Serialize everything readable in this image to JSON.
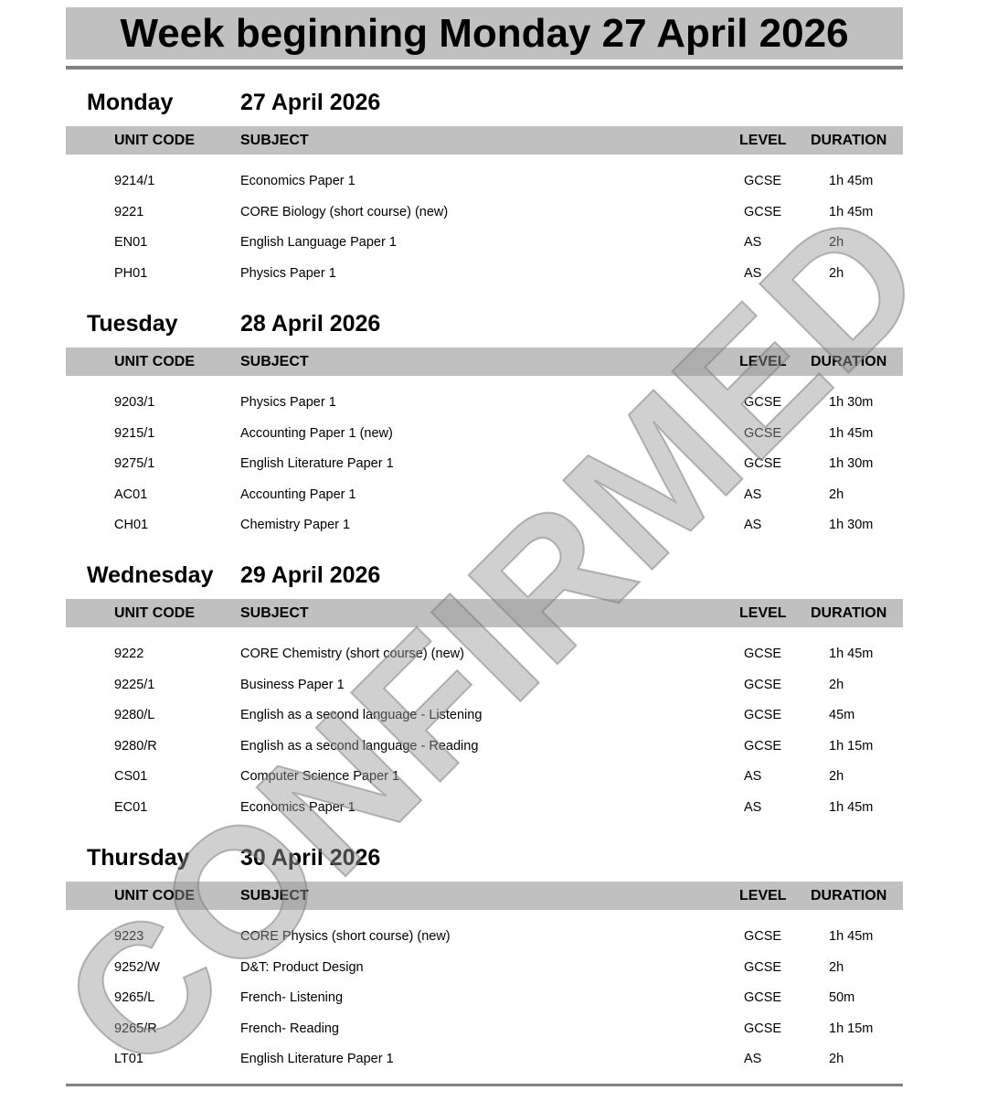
{
  "title": "Week beginning Monday 27 April 2026",
  "watermark": "CONFIRMED",
  "columns": {
    "unit_code": "UNIT CODE",
    "subject": "SUBJECT",
    "level": "LEVEL",
    "duration": "DURATION"
  },
  "days": [
    {
      "day": "Monday",
      "date": "27 April 2026",
      "rows": [
        [
          "9214/1",
          "Economics Paper 1",
          "GCSE",
          "1h 45m"
        ],
        [
          "9221",
          "CORE Biology (short course) (new)",
          "GCSE",
          "1h 45m"
        ],
        [
          "EN01",
          "English Language Paper 1",
          "AS",
          "2h"
        ],
        [
          "PH01",
          "Physics Paper 1",
          "AS",
          "2h"
        ]
      ]
    },
    {
      "day": "Tuesday",
      "date": "28 April 2026",
      "rows": [
        [
          "9203/1",
          "Physics Paper 1",
          "GCSE",
          "1h 30m"
        ],
        [
          "9215/1",
          "Accounting Paper 1 (new)",
          "GCSE",
          "1h 45m"
        ],
        [
          "9275/1",
          "English Literature Paper 1",
          "GCSE",
          "1h 30m"
        ],
        [
          "AC01",
          "Accounting Paper 1",
          "AS",
          "2h"
        ],
        [
          "CH01",
          "Chemistry Paper 1",
          "AS",
          "1h 30m"
        ]
      ]
    },
    {
      "day": "Wednesday",
      "date": "29 April 2026",
      "rows": [
        [
          "9222",
          "CORE Chemistry (short course) (new)",
          "GCSE",
          "1h 45m"
        ],
        [
          "9225/1",
          "Business Paper 1",
          "GCSE",
          "2h"
        ],
        [
          "9280/L",
          "English as a second language - Listening",
          "GCSE",
          "45m"
        ],
        [
          "9280/R",
          "English as a second language - Reading",
          "GCSE",
          "1h 15m"
        ],
        [
          "CS01",
          "Computer Science Paper 1",
          "AS",
          "2h"
        ],
        [
          "EC01",
          "Economics Paper 1",
          "AS",
          "1h 45m"
        ]
      ]
    },
    {
      "day": "Thursday",
      "date": "30 April 2026",
      "rows": [
        [
          "9223",
          "CORE Physics (short course) (new)",
          "GCSE",
          "1h 45m"
        ],
        [
          "9252/W",
          "D&T: Product Design",
          "GCSE",
          "2h"
        ],
        [
          "9265/L",
          "French- Listening",
          "GCSE",
          "50m"
        ],
        [
          "9265/R",
          "French- Reading",
          "GCSE",
          "1h 15m"
        ],
        [
          "LT01",
          "English Literature Paper 1",
          "AS",
          "2h"
        ]
      ]
    }
  ]
}
